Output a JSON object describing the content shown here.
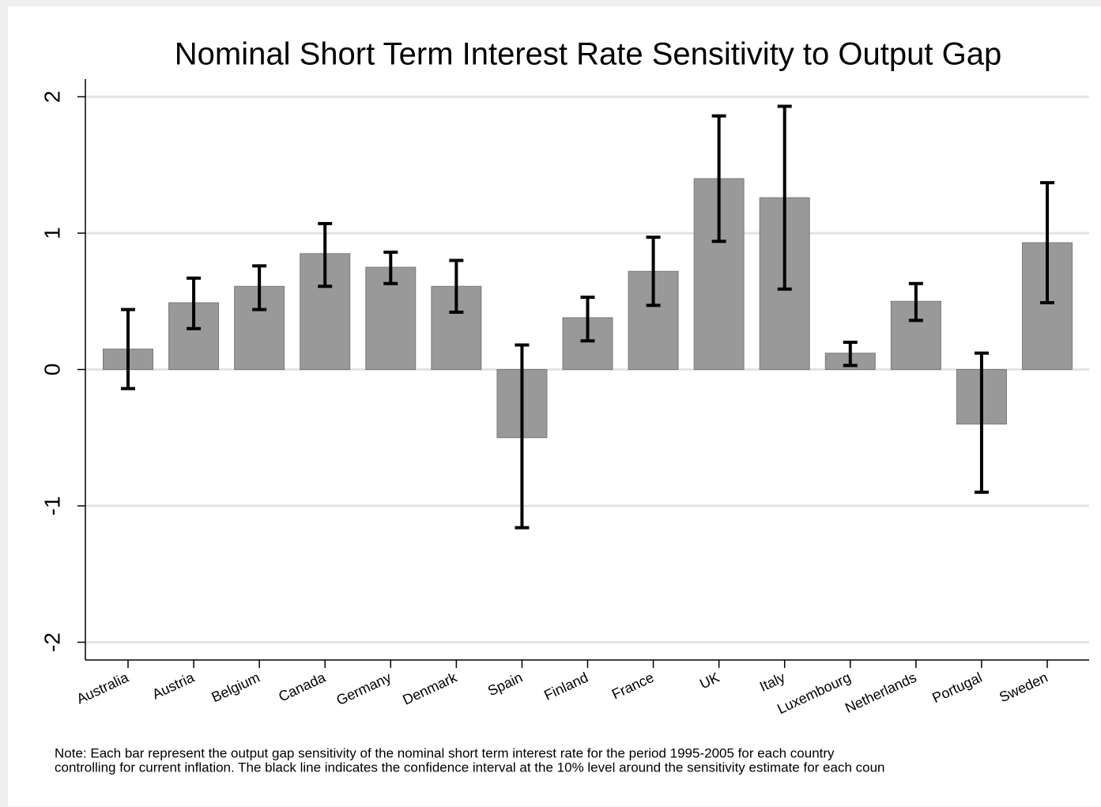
{
  "chart_data": {
    "type": "bar",
    "title": "Nominal Short Term Interest Rate Sensitivity to Output Gap",
    "categories": [
      "Australia",
      "Austria",
      "Belgium",
      "Canada",
      "Germany",
      "Denmark",
      "Spain",
      "Finland",
      "France",
      "UK",
      "Italy",
      "Luxembourg",
      "Netherlands",
      "Portugal",
      "Sweden"
    ],
    "values": [
      0.15,
      0.49,
      0.61,
      0.85,
      0.75,
      0.61,
      -0.5,
      0.38,
      0.72,
      1.4,
      1.26,
      0.12,
      0.5,
      -0.4,
      0.93
    ],
    "ci_low": [
      -0.14,
      0.3,
      0.44,
      0.61,
      0.63,
      0.42,
      -1.16,
      0.21,
      0.47,
      0.94,
      0.59,
      0.03,
      0.36,
      -0.9,
      0.49
    ],
    "ci_high": [
      0.44,
      0.67,
      0.76,
      1.07,
      0.86,
      0.8,
      0.18,
      0.53,
      0.97,
      1.86,
      1.93,
      0.2,
      0.63,
      0.12,
      1.37
    ],
    "color": "#999999",
    "error_color": "#000000",
    "ylim": [
      -2.13,
      2.13
    ],
    "yticks": [
      -2,
      -1,
      0,
      1,
      2
    ],
    "grid": true,
    "note": [
      "Note: Each bar represent the output gap sensitivity of the nominal short term interest rate for the period 1995-2005 for each country",
      "controlling for current inflation. The black line indicates the confidence interval at the 10% level around the sensitivity estimate for each coun"
    ]
  }
}
